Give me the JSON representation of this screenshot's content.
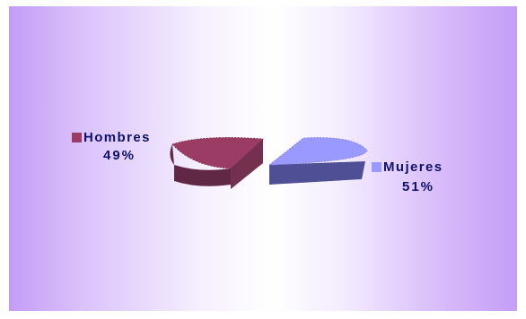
{
  "chart_data": {
    "type": "pie",
    "title": "",
    "categories": [
      "Hombres",
      "Mujeres"
    ],
    "values": [
      49,
      51
    ],
    "labels": [
      {
        "name": "Hombres",
        "pct": "49%"
      },
      {
        "name": "Mujeres",
        "pct": "51%"
      }
    ],
    "colors": {
      "Hombres": {
        "top": "#9a3c63",
        "side": "#612845"
      },
      "Mujeres": {
        "top": "#9999ff",
        "side": "#4f4f96"
      }
    },
    "style": "3d-exploded",
    "legend": "data-labels"
  }
}
